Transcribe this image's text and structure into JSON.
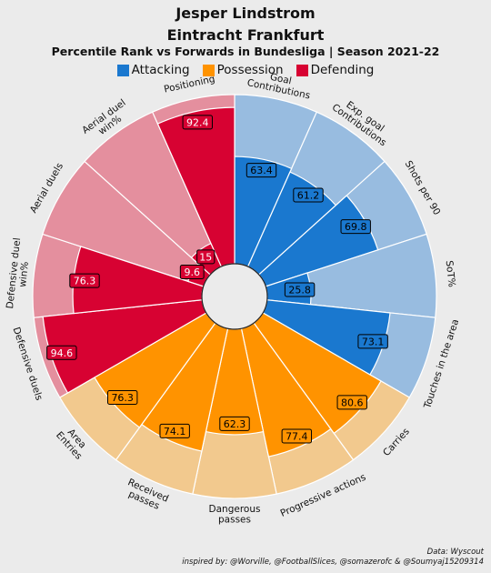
{
  "header": {
    "player": "Jesper Lindstrom",
    "team": "Eintracht Frankfurt",
    "subtitle": "Percentile Rank vs Forwards in Bundesliga | Season 2021-22"
  },
  "legend": [
    {
      "label": "Attacking",
      "color": "#1a78cf"
    },
    {
      "label": "Possession",
      "color": "#ff9300"
    },
    {
      "label": "Defending",
      "color": "#d70232"
    }
  ],
  "footer": {
    "source": "Data: Wyscout",
    "credit": "inspired by: @Worville, @FootballSlices, @somazerofc & @Soumyaj15209314"
  },
  "chart_data": {
    "type": "pie",
    "subtype": "polar-bar (pizza)",
    "range": [
      0,
      100
    ],
    "direction": "clockwise from top",
    "categories": [
      {
        "name": "Attacking",
        "color": "#1a78cf",
        "background": "#98bce0"
      },
      {
        "name": "Possession",
        "color": "#ff9300",
        "background": "#f2c98e"
      },
      {
        "name": "Defending",
        "color": "#d70232",
        "background": "#e48f9e"
      }
    ],
    "params": [
      {
        "label": "Goal\nContributions",
        "value": 63.4,
        "category": "Attacking"
      },
      {
        "label": "Exp. goal\nContributions",
        "value": 61.2,
        "category": "Attacking"
      },
      {
        "label": "Shots per 90",
        "value": 69.8,
        "category": "Attacking"
      },
      {
        "label": "SoT%",
        "value": 25.8,
        "category": "Attacking"
      },
      {
        "label": "Touches in the area",
        "value": 73.1,
        "category": "Attacking"
      },
      {
        "label": "Carries",
        "value": 80.6,
        "category": "Possession"
      },
      {
        "label": "Progressive actions",
        "value": 77.4,
        "category": "Possession"
      },
      {
        "label": "Dangerous\npasses",
        "value": 62.3,
        "category": "Possession"
      },
      {
        "label": "Received\npasses",
        "value": 74.1,
        "category": "Possession"
      },
      {
        "label": "Area\nEntries",
        "value": 76.3,
        "category": "Possession"
      },
      {
        "label": "Defensive duels",
        "value": 94.6,
        "category": "Defending"
      },
      {
        "label": "Defensive duel\nwin%",
        "value": 76.3,
        "category": "Defending"
      },
      {
        "label": "Aerial duels",
        "value": 9.6,
        "category": "Defending"
      },
      {
        "label": "Aerial duel\nwin%",
        "value": 15,
        "category": "Defending"
      },
      {
        "label": "Positioning",
        "value": 92.4,
        "category": "Defending"
      }
    ]
  }
}
